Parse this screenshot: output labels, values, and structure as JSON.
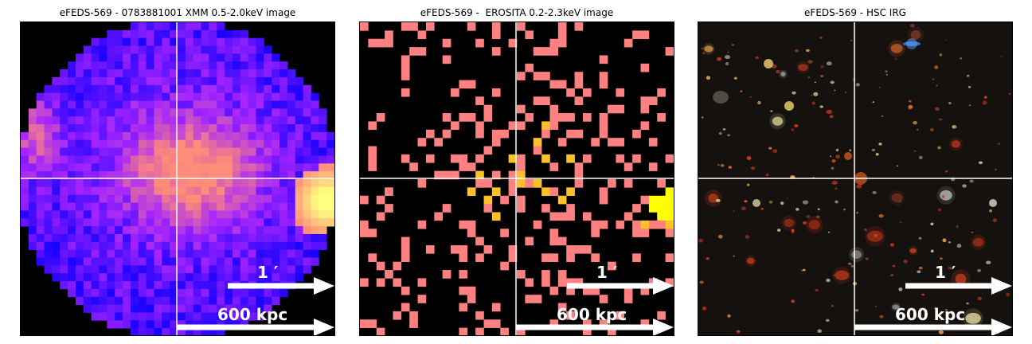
{
  "panels": [
    {
      "title": "eFEDS-569 - 0783881001 XMM 0.5-2.0keV image",
      "scalebar_angular": "1 ′",
      "scalebar_physical": "600 kpc"
    },
    {
      "title": "eFEDS-569 -  EROSITA 0.2-2.3keV image",
      "scalebar_angular": "1 ′",
      "scalebar_physical": "600 kpc"
    },
    {
      "title": "eFEDS-569 - HSC IRG",
      "scalebar_angular": "1 ′",
      "scalebar_physical": "600 kpc"
    }
  ],
  "colors": {
    "xmm_low": "#1200ff",
    "xmm_mid": "#a424ff",
    "xmm_high": "#ff8c78",
    "xmm_peak": "#ffff80",
    "erosita_low": "#ff8080",
    "erosita_mid": "#ffc02a",
    "erosita_high": "#ffff00",
    "crosshair": "#ffffff",
    "scalebar": "#ffffff"
  }
}
